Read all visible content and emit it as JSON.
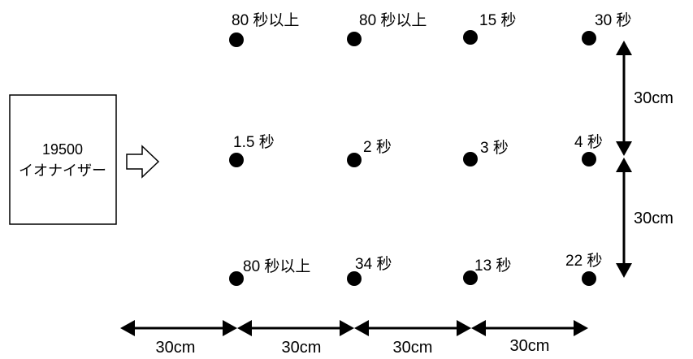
{
  "device": {
    "line1": "19500",
    "line2": "イオナイザー"
  },
  "measurements": {
    "top": [
      "80 秒以上",
      "80 秒以上",
      "15 秒",
      "30 秒"
    ],
    "middle": [
      "1.5 秒",
      "2 秒",
      "3 秒",
      "4 秒"
    ],
    "bottom": [
      "80 秒以上",
      "34 秒",
      "13 秒",
      "22 秒"
    ]
  },
  "dimensions": {
    "horizontal": [
      "30cm",
      "30cm",
      "30cm",
      "30cm"
    ],
    "vertical": [
      "30cm",
      "30cm"
    ]
  },
  "colors": {
    "ink": "#000000",
    "background": "#ffffff"
  }
}
